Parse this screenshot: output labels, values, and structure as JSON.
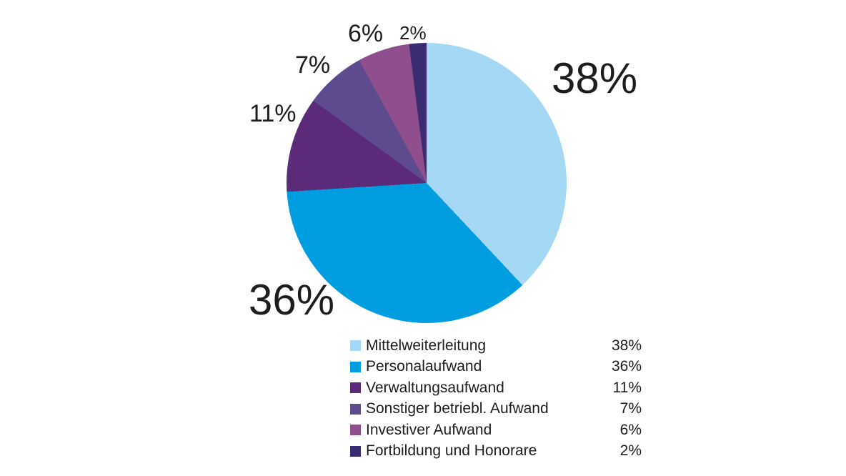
{
  "background_color": "#FFFFFF",
  "text_color": "#1D1D1B",
  "chart_data": {
    "type": "pie",
    "title": "",
    "categories": [
      "Mittelweiterleitung",
      "Personalaufwand",
      "Verwaltungsaufwand",
      "Sonstiger betriebl. Aufwand",
      "Investiver Aufwand",
      "Fortbildung und Honorare"
    ],
    "values": [
      38,
      36,
      11,
      7,
      6,
      2
    ],
    "unit": "%",
    "colors": [
      "#A4D8F5",
      "#009EE0",
      "#5B2A79",
      "#5E4B8E",
      "#8F4E8D",
      "#3B2C71"
    ],
    "slice_labels": [
      "38%",
      "36%",
      "11%",
      "7%",
      "6%",
      "2%"
    ],
    "start_angle_deg": 0,
    "direction": "clockwise",
    "legend_position": "bottom-right",
    "grid": false
  }
}
